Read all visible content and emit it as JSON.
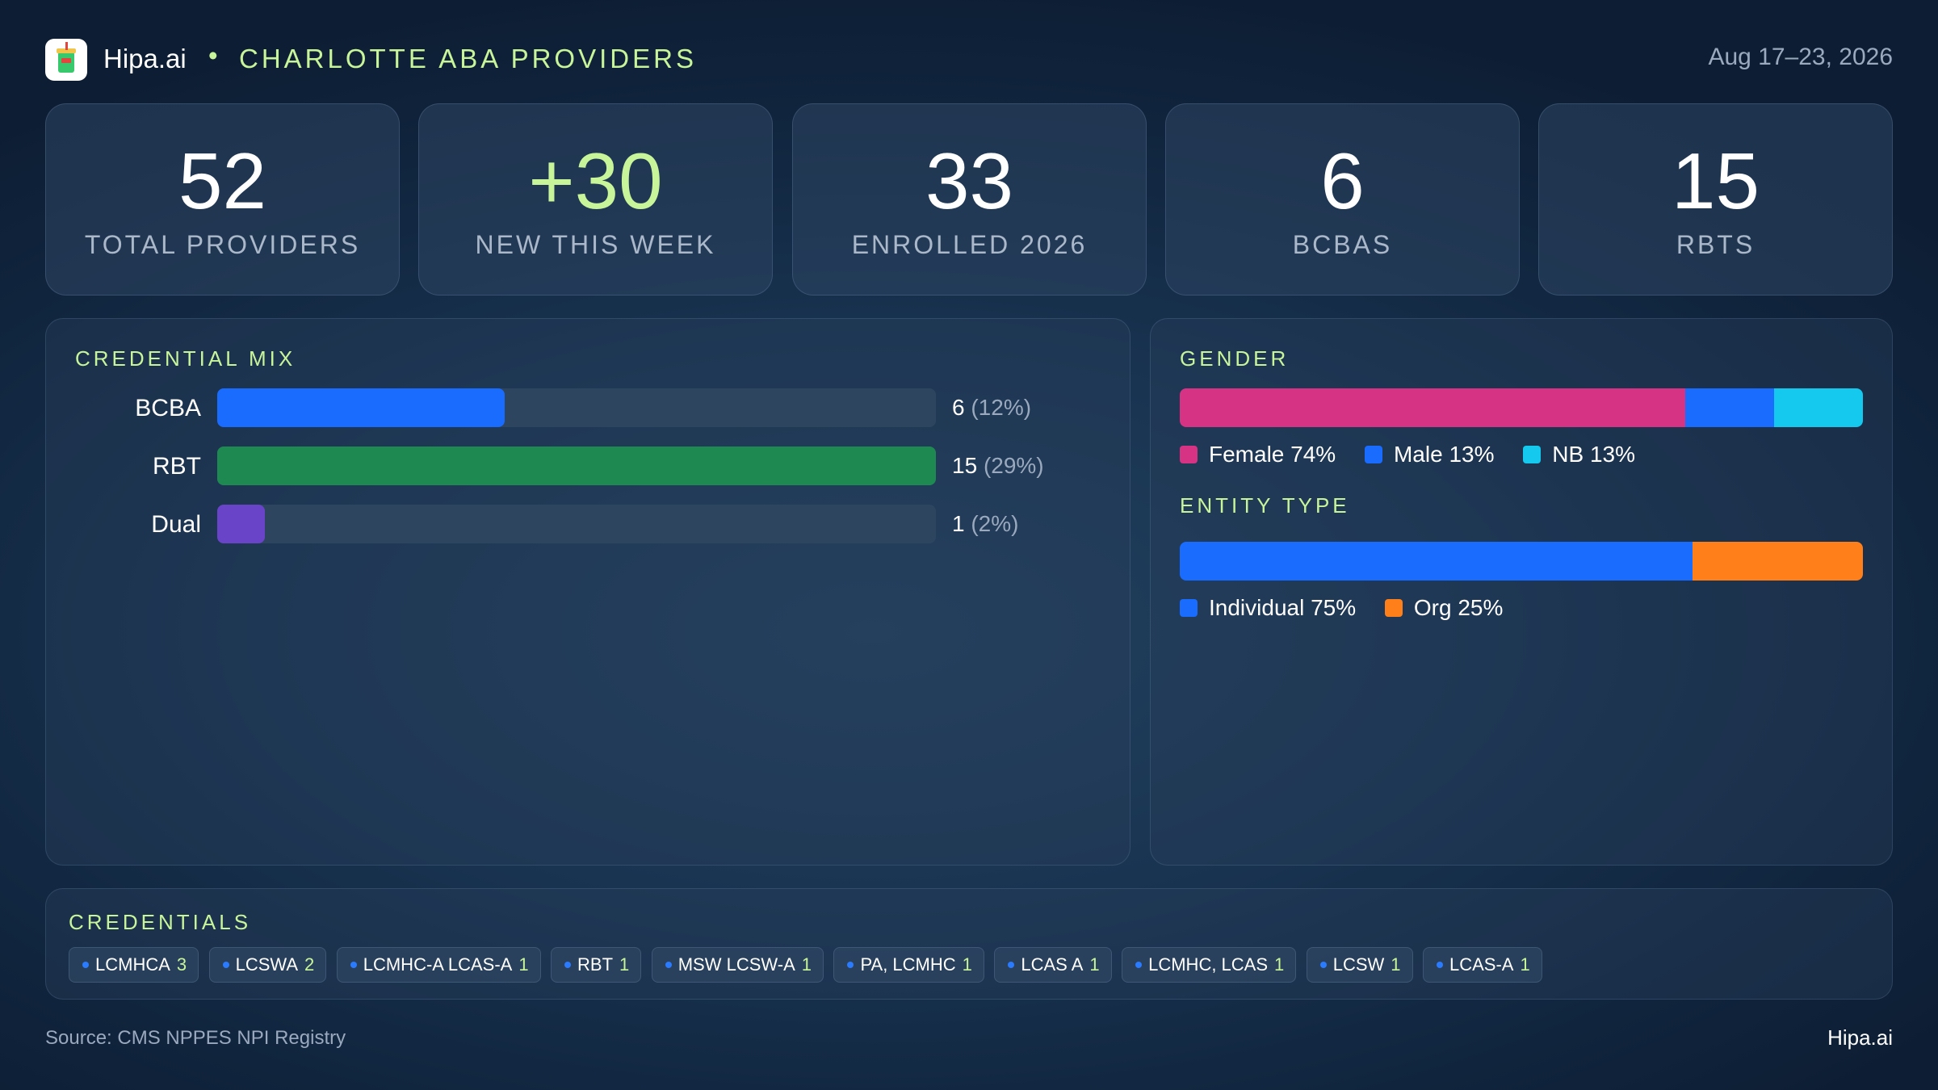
{
  "header": {
    "brand": "Hipa.ai",
    "separator": "•",
    "title": "CHARLOTTE ABA PROVIDERS",
    "date": "Aug 17–23, 2026",
    "logo_icon": "drink-cup-icon"
  },
  "kpis": [
    {
      "value": "52",
      "label": "TOTAL PROVIDERS"
    },
    {
      "value": "+30",
      "label": "NEW THIS WEEK"
    },
    {
      "value": "33",
      "label": "ENROLLED 2026"
    },
    {
      "value": "6",
      "label": "BCBAS"
    },
    {
      "value": "15",
      "label": "RBTS"
    }
  ],
  "colors": {
    "accent": "#c9f59a",
    "bcba": "#1a6cff",
    "rbt": "#1e8a52",
    "dual": "#6a44c8",
    "female": "#d63384",
    "male": "#1a6cff",
    "nb": "#14c8ee",
    "individual": "#1a6cff",
    "org": "#ff7f1a"
  },
  "chart_data": [
    {
      "type": "bar",
      "orientation": "horizontal",
      "title": "CREDENTIAL MIX",
      "categories": [
        "BCBA",
        "RBT",
        "Dual"
      ],
      "values": [
        6,
        15,
        1
      ],
      "percents": [
        "(12%)",
        "(29%)",
        "(2%)"
      ],
      "xlim": [
        0,
        15
      ]
    },
    {
      "type": "bar",
      "stacked": true,
      "title": "GENDER",
      "series": [
        {
          "name": "Female",
          "value": 74,
          "label": "Female 74%"
        },
        {
          "name": "Male",
          "value": 13,
          "label": "Male 13%"
        },
        {
          "name": "NB",
          "value": 13,
          "label": "NB 13%"
        }
      ]
    },
    {
      "type": "bar",
      "stacked": true,
      "title": "ENTITY TYPE",
      "series": [
        {
          "name": "Individual",
          "value": 75,
          "label": "Individual 75%"
        },
        {
          "name": "Org",
          "value": 25,
          "label": "Org 25%"
        }
      ]
    }
  ],
  "credentials": {
    "title": "CREDENTIALS",
    "items": [
      {
        "name": "LCMHCA",
        "count": "3"
      },
      {
        "name": "LCSWA",
        "count": "2"
      },
      {
        "name": "LCMHC-A LCAS-A",
        "count": "1"
      },
      {
        "name": "RBT",
        "count": "1"
      },
      {
        "name": "MSW LCSW-A",
        "count": "1"
      },
      {
        "name": "PA, LCMHC",
        "count": "1"
      },
      {
        "name": "LCAS A",
        "count": "1"
      },
      {
        "name": "LCMHC, LCAS",
        "count": "1"
      },
      {
        "name": "LCSW",
        "count": "1"
      },
      {
        "name": "LCAS-A",
        "count": "1"
      }
    ]
  },
  "footer": {
    "source": "Source: CMS NPPES NPI Registry",
    "brand": "Hipa.ai"
  }
}
